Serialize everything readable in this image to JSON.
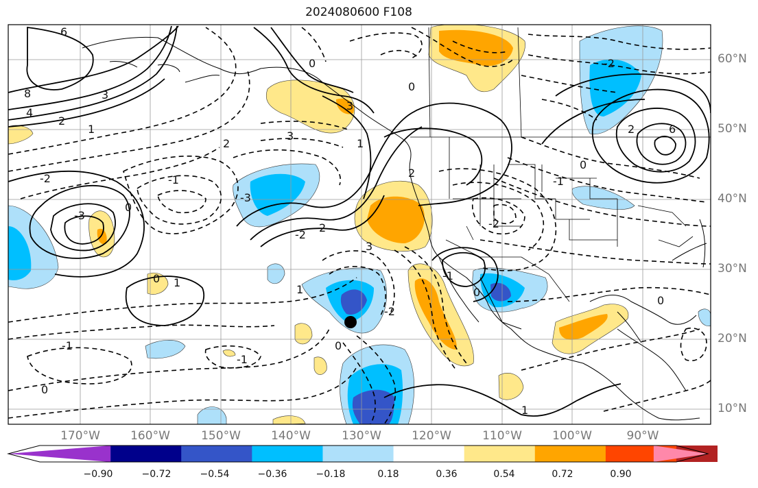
{
  "title": "2024080600 F108",
  "latitude_labels": [
    "60°N",
    "50°N",
    "40°N",
    "30°N",
    "20°N",
    "10°N"
  ],
  "longitude_labels": [
    "170°W",
    "160°W",
    "150°W",
    "140°W",
    "130°W",
    "120°W",
    "110°W",
    "100°W",
    "90°W"
  ],
  "colorbar": {
    "ticks": [
      "−0.90",
      "−0.72",
      "−0.54",
      "−0.36",
      "−0.18",
      "0.18",
      "0.36",
      "0.54",
      "0.72",
      "0.90"
    ],
    "colors": [
      "#9932cc",
      "#00008b",
      "#3455c8",
      "#00bfff",
      "#aee0fa",
      "#ffffff",
      "#ffe88a",
      "#ffa500",
      "#ff4500",
      "#b22222",
      "#ff88aa"
    ]
  },
  "contour_labels": [
    "6",
    "8",
    "4",
    "3",
    "2",
    "1",
    "-1",
    "-2",
    "-3",
    "0",
    "0",
    "1",
    "2",
    "3",
    "-3",
    "0",
    "3",
    "6",
    "2",
    "-2",
    "0",
    "-1",
    "1",
    "0",
    "2",
    "-2",
    "-1",
    "0",
    "-1",
    "0",
    "0",
    "1",
    "-2",
    "2",
    "3",
    "-2",
    "0",
    "1",
    "-1"
  ],
  "marker": "storm-position"
}
